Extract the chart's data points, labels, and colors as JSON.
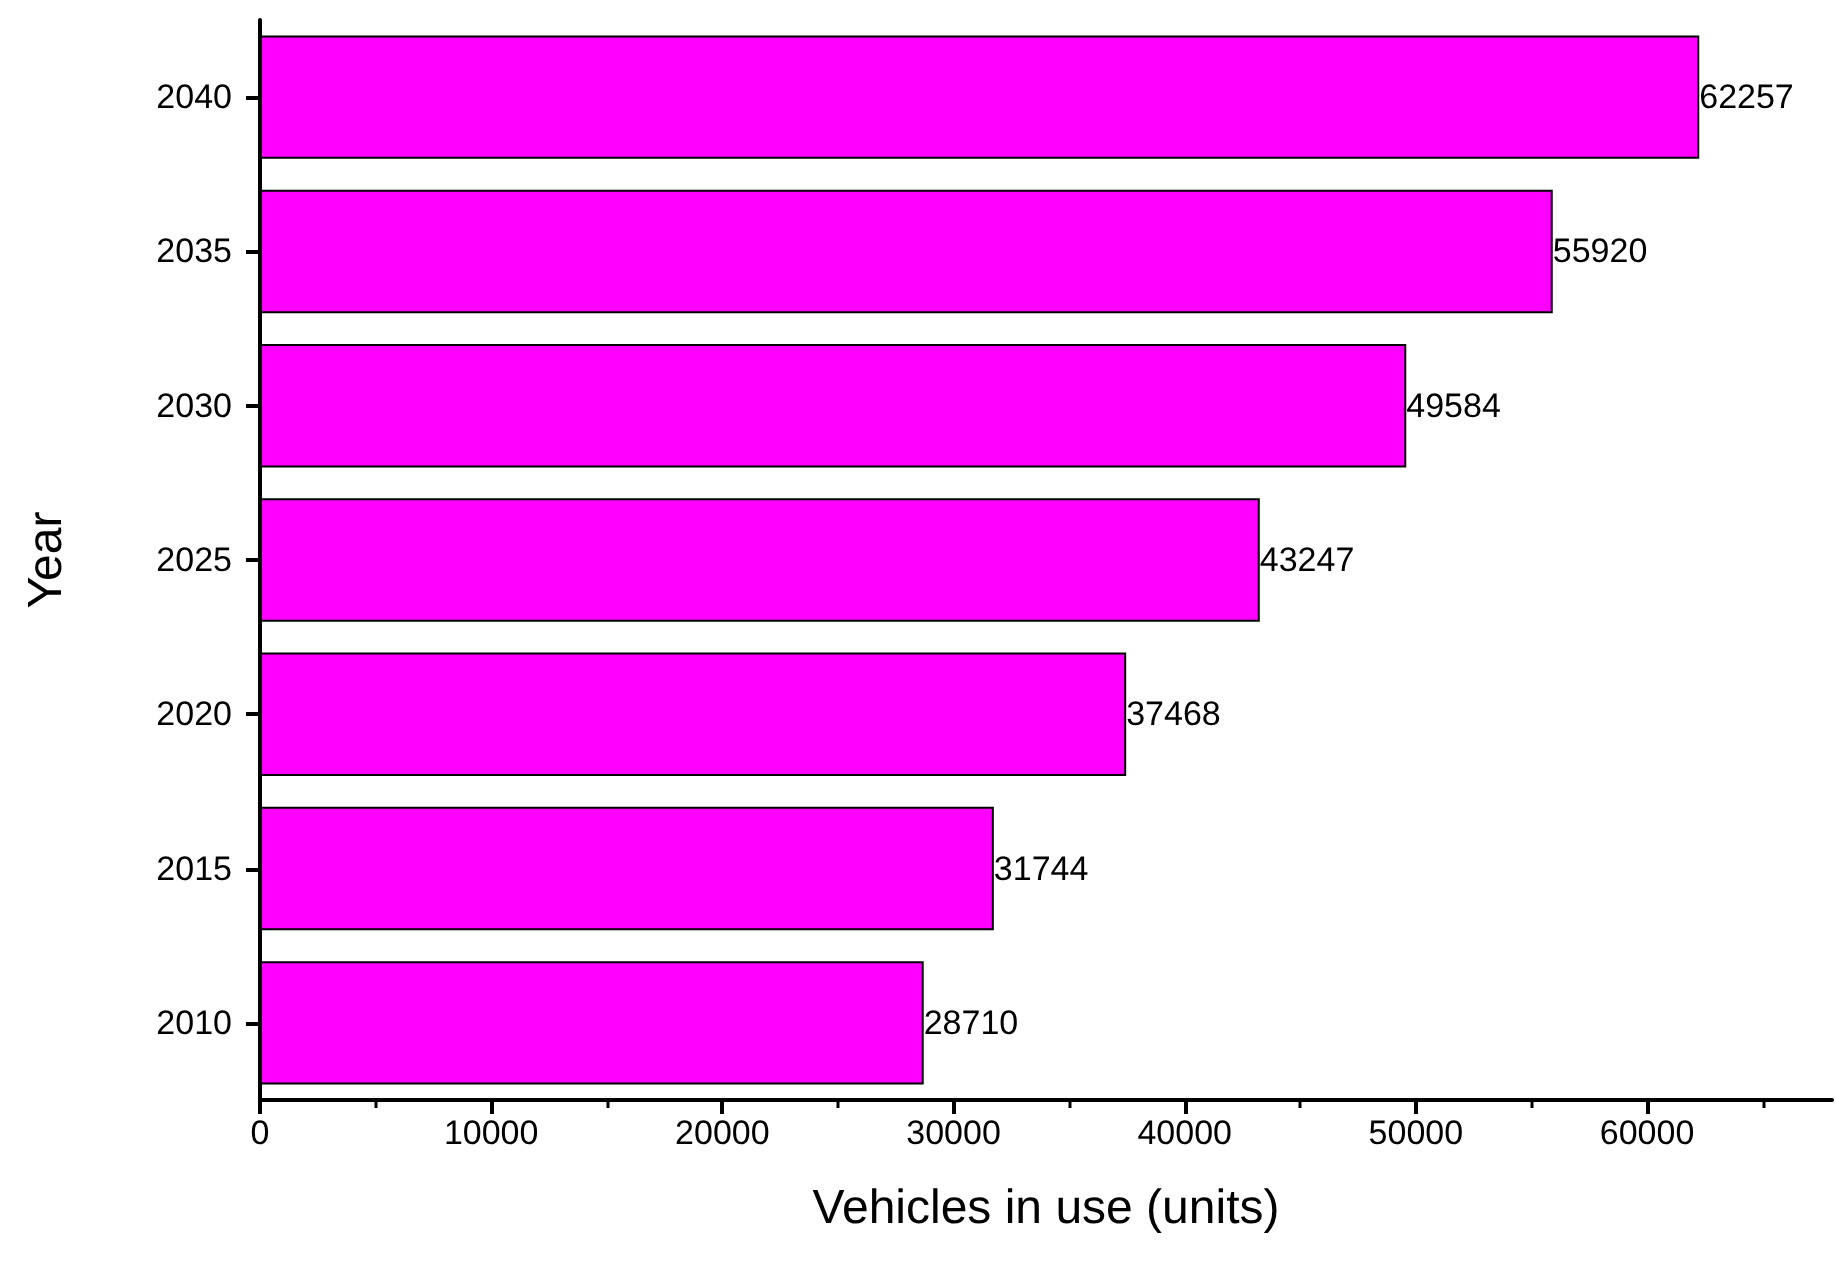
{
  "chart_data": {
    "type": "bar",
    "orientation": "horizontal",
    "xlabel": "Vehicles in use (units)",
    "ylabel": "Year",
    "categories": [
      "2040",
      "2035",
      "2030",
      "2025",
      "2020",
      "2015",
      "2010"
    ],
    "values": [
      62257,
      55920,
      49584,
      43247,
      37468,
      31744,
      28710
    ],
    "color": "#ff00ff",
    "data_labels": true,
    "xlim": [
      0,
      68000
    ],
    "xticks": [
      0,
      10000,
      20000,
      30000,
      40000,
      50000,
      60000
    ],
    "grid": false
  }
}
